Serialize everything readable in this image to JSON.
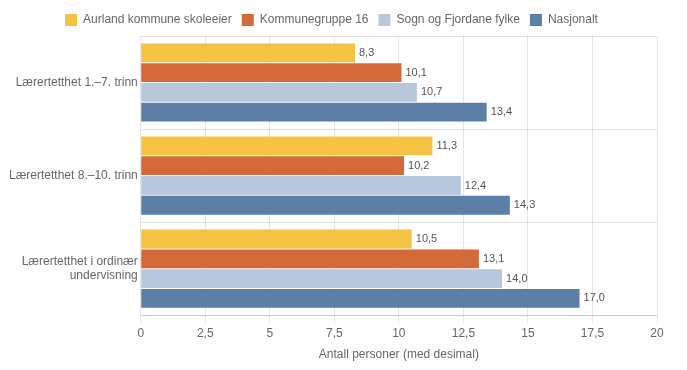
{
  "chart_data": {
    "type": "bar",
    "orientation": "horizontal",
    "categories": [
      "Lærertetthet 1.–7. trinn",
      "Lærertetthet 8.–10. trinn",
      "Lærertetthet i ordinær\nundervisning"
    ],
    "series": [
      {
        "name": "Aurland kommune skoleeier",
        "color": "#F5C242",
        "values": [
          8.3,
          11.3,
          10.5
        ],
        "value_labels": [
          "8,3",
          "11,3",
          "10,5"
        ]
      },
      {
        "name": "Kommunegruppe 16",
        "color": "#D4693A",
        "values": [
          10.1,
          10.2,
          13.1
        ],
        "value_labels": [
          "10,1",
          "10,2",
          "13,1"
        ]
      },
      {
        "name": "Sogn og Fjordane fylke",
        "color": "#B8C8DC",
        "values": [
          10.7,
          12.4,
          14.0
        ],
        "value_labels": [
          "10,7",
          "12,4",
          "14,0"
        ]
      },
      {
        "name": "Nasjonalt",
        "color": "#5B7FA6",
        "values": [
          13.4,
          14.3,
          17.0
        ],
        "value_labels": [
          "13,4",
          "14,3",
          "17,0"
        ]
      }
    ],
    "xlabel": "Antall personer (med desimal)",
    "xlim": [
      0,
      20
    ],
    "xticks": [
      0,
      {
        "value": 2.5,
        "label": "2,5"
      },
      5,
      {
        "value": 7.5,
        "label": "7,5"
      },
      10,
      {
        "value": 12.5,
        "label": "12,5"
      },
      15,
      {
        "value": 17.5,
        "label": "17,5"
      },
      20
    ],
    "grid": true,
    "legend": "top",
    "data_labels": true
  }
}
